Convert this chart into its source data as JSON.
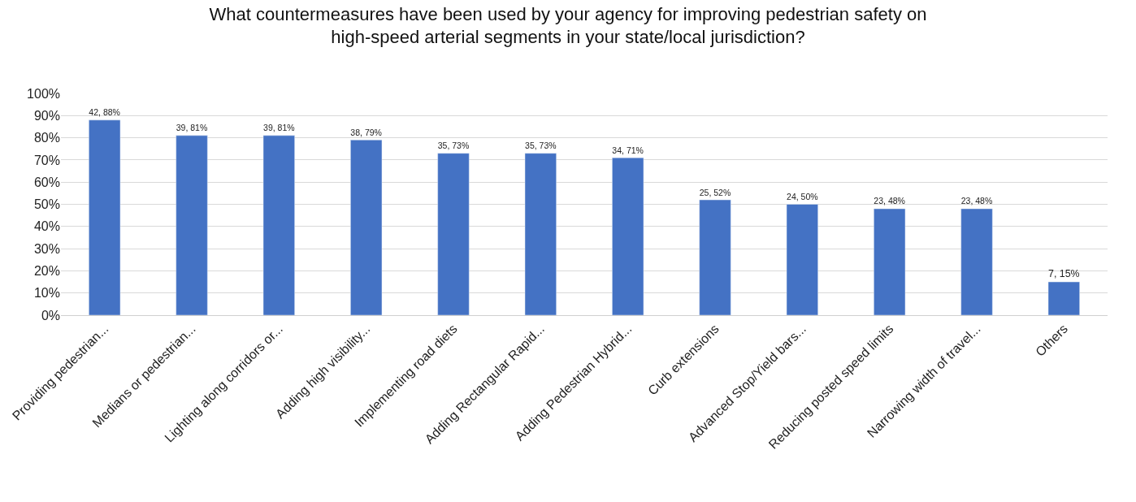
{
  "chart_data": {
    "type": "bar",
    "title": "What countermeasures have been used by your agency for improving pedestrian safety on\nhigh-speed arterial segments in your state/local jurisdiction?",
    "categories": [
      "Providing pedestrian...",
      "Medians or pedestrian...",
      "Lighting along corridors or...",
      "Adding high visibility...",
      "Implementing road diets",
      "Adding Rectangular Rapid...",
      "Adding Pedestrian Hybrid...",
      "Curb extensions",
      "Advanced Stop/Yield bars...",
      "Reducing posted speed limits",
      "Narrowing width of travel...",
      "Others"
    ],
    "values": [
      88,
      81,
      81,
      79,
      73,
      73,
      71,
      52,
      50,
      48,
      48,
      15
    ],
    "value_labels": [
      "42, 88%",
      "39, 81%",
      "39, 81%",
      "38, 79%",
      "35, 73%",
      "35, 73%",
      "34, 71%",
      "25, 52%",
      "24, 50%",
      "23, 48%",
      "23, 48%",
      "7, 15%"
    ],
    "color": "#4472c4",
    "ylim": [
      0,
      100
    ],
    "yticks": [
      {
        "value": 0,
        "label": "0%"
      },
      {
        "value": 10,
        "label": "10%"
      },
      {
        "value": 20,
        "label": "20%"
      },
      {
        "value": 30,
        "label": "30%"
      },
      {
        "value": 40,
        "label": "40%"
      },
      {
        "value": 50,
        "label": "50%"
      },
      {
        "value": 60,
        "label": "60%"
      },
      {
        "value": 70,
        "label": "70%"
      },
      {
        "value": 80,
        "label": "80%"
      },
      {
        "value": 90,
        "label": "90%"
      },
      {
        "value": 100,
        "label": "100%"
      }
    ],
    "grid": "y",
    "legend": false
  }
}
